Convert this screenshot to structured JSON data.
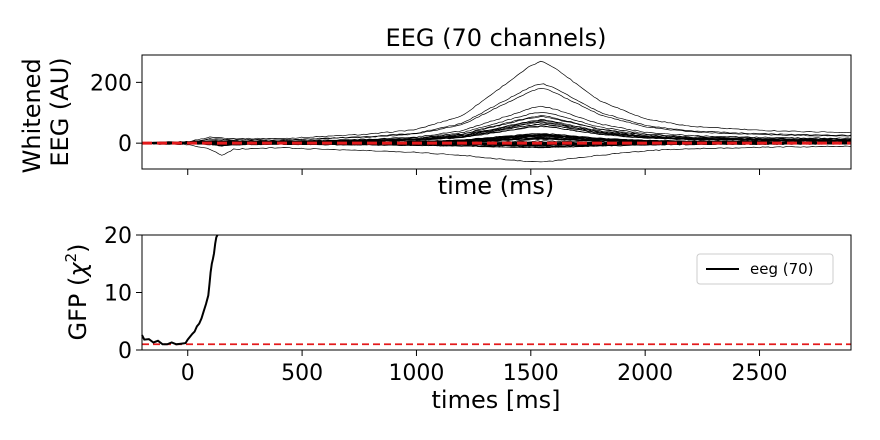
{
  "chart_data": [
    {
      "type": "line",
      "title": "EEG (70 channels)",
      "xlabel": "time (ms)",
      "ylabel": "Whitened\nEEG (AU)",
      "xlim": [
        -200,
        2900
      ],
      "ylim": [
        -85,
        290
      ],
      "xticks": [
        0,
        500,
        1000,
        1500,
        2000,
        2500
      ],
      "yticks": [
        0,
        200
      ],
      "ytick_labels": [
        "0",
        "200"
      ],
      "x_tick_labels_shown": false,
      "reference_line": {
        "y": 0,
        "style": "dashed",
        "color": "#e31a1c"
      },
      "line_color": "#000000",
      "channel_count": 70,
      "series_envelope": {
        "x": [
          -200,
          0,
          100,
          150,
          200,
          400,
          600,
          800,
          1000,
          1200,
          1400,
          1500,
          1550,
          1600,
          1800,
          2000,
          2200,
          2500,
          2700,
          2900
        ],
        "max": [
          2,
          5,
          20,
          18,
          15,
          15,
          22,
          30,
          45,
          90,
          200,
          255,
          270,
          250,
          140,
          80,
          55,
          42,
          38,
          35
        ],
        "min": [
          -2,
          -5,
          -20,
          -40,
          -20,
          -15,
          -20,
          -25,
          -30,
          -40,
          -55,
          -60,
          -62,
          -58,
          -40,
          -25,
          -18,
          -14,
          -12,
          -10
        ]
      }
    },
    {
      "type": "line",
      "title": "",
      "xlabel": "times [ms]",
      "ylabel": "GFP (χ²)",
      "ylabel_text": "GFP (",
      "ylabel_symbol": "χ",
      "ylabel_sup": "2",
      "ylabel_close": ")",
      "xlim": [
        -200,
        2900
      ],
      "ylim": [
        0,
        20
      ],
      "xticks": [
        0,
        500,
        1000,
        1500,
        2000,
        2500
      ],
      "xtick_labels": [
        "0",
        "500",
        "1000",
        "1500",
        "2000",
        "2500"
      ],
      "yticks": [
        0,
        10,
        20
      ],
      "ytick_labels": [
        "0",
        "10",
        "20"
      ],
      "reference_line": {
        "y": 1,
        "style": "dashed",
        "color": "#e31a1c"
      },
      "legend": {
        "position": "upper-right",
        "entries": [
          {
            "label": "eeg (70)",
            "color": "#000000"
          }
        ]
      },
      "series": [
        {
          "name": "eeg (70)",
          "color": "#000000",
          "x": [
            -200,
            -190,
            -170,
            -150,
            -130,
            -110,
            -90,
            -70,
            -50,
            -30,
            -10,
            0,
            10,
            20,
            30,
            40,
            50,
            60,
            70,
            80,
            90,
            95,
            100,
            105,
            110,
            115,
            120,
            125,
            130
          ],
          "y": [
            2.6,
            1.8,
            1.9,
            1.3,
            1.6,
            1.0,
            1.0,
            1.3,
            1.0,
            1.1,
            1.2,
            1.8,
            2.3,
            2.8,
            3.2,
            4.1,
            4.6,
            5.5,
            6.8,
            8.0,
            9.5,
            11.5,
            13.5,
            15.0,
            15.8,
            16.8,
            18.5,
            19.6,
            20.5
          ]
        }
      ]
    }
  ]
}
